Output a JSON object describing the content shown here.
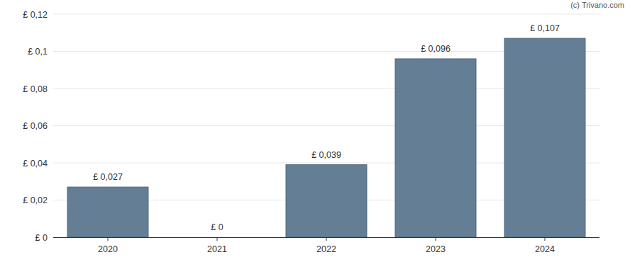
{
  "chart_data": {
    "type": "bar",
    "annotations": [
      "(c) Trivano.com"
    ],
    "categories": [
      "2020",
      "2021",
      "2022",
      "2023",
      "2024"
    ],
    "values": [
      0.027,
      0,
      0.039,
      0.096,
      0.107
    ],
    "value_labels": [
      "£ 0,027",
      "£ 0",
      "£ 0,039",
      "£ 0,096",
      "£ 0,107"
    ],
    "data_labels": true,
    "color": "#647f95",
    "ylim": [
      0,
      0.12
    ],
    "yticks": [
      {
        "value": 0,
        "label": "£ 0"
      },
      {
        "value": 0.02,
        "label": "£ 0,02"
      },
      {
        "value": 0.04,
        "label": "£ 0,04"
      },
      {
        "value": 0.06,
        "label": "£ 0,06"
      },
      {
        "value": 0.08,
        "label": "£ 0,08"
      },
      {
        "value": 0.1,
        "label": "£ 0,1"
      },
      {
        "value": 0.12,
        "label": "£ 0,12"
      }
    ],
    "grid": true
  }
}
